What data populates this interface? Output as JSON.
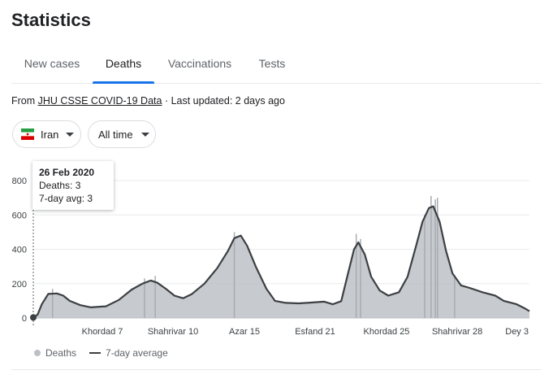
{
  "header": {
    "title": "Statistics"
  },
  "tabs": [
    {
      "label": "New cases",
      "active": false
    },
    {
      "label": "Deaths",
      "active": true
    },
    {
      "label": "Vaccinations",
      "active": false
    },
    {
      "label": "Tests",
      "active": false
    }
  ],
  "source": {
    "prefix": "From ",
    "link": "JHU CSSE COVID-19 Data",
    "updated": " · Last updated: 2 days ago"
  },
  "filters": {
    "country": {
      "label": "Iran",
      "icon": "iran-flag-icon"
    },
    "range": {
      "label": "All time"
    }
  },
  "tooltip": {
    "date": "26 Feb 2020",
    "deaths": "Deaths: 3",
    "avg": "7-day avg: 3"
  },
  "legend": {
    "deaths": "Deaths",
    "average": "7-day average"
  },
  "colors": {
    "accent": "#1a73e8",
    "bars": "#bdc1c6",
    "line": "#3c4043"
  },
  "chart_data": {
    "type": "area",
    "ylim": [
      0,
      800
    ],
    "yticks": [
      0,
      200,
      400,
      600,
      800
    ],
    "xtick_labels": [
      "Khordad 7",
      "Shahrivar 10",
      "Azar 15",
      "Esfand 21",
      "Khordad 25",
      "Shahrivar 28",
      "Dey 3"
    ],
    "series": [
      {
        "name": "7-day average",
        "points": [
          [
            0,
            3
          ],
          [
            0.01,
            20
          ],
          [
            0.02,
            80
          ],
          [
            0.035,
            140
          ],
          [
            0.055,
            143
          ],
          [
            0.07,
            130
          ],
          [
            0.085,
            100
          ],
          [
            0.11,
            75
          ],
          [
            0.135,
            62
          ],
          [
            0.17,
            68
          ],
          [
            0.2,
            105
          ],
          [
            0.23,
            165
          ],
          [
            0.255,
            200
          ],
          [
            0.275,
            218
          ],
          [
            0.29,
            205
          ],
          [
            0.31,
            170
          ],
          [
            0.33,
            130
          ],
          [
            0.35,
            115
          ],
          [
            0.37,
            138
          ],
          [
            0.4,
            200
          ],
          [
            0.43,
            290
          ],
          [
            0.455,
            390
          ],
          [
            0.47,
            465
          ],
          [
            0.485,
            480
          ],
          [
            0.5,
            420
          ],
          [
            0.52,
            300
          ],
          [
            0.545,
            170
          ],
          [
            0.565,
            100
          ],
          [
            0.59,
            88
          ],
          [
            0.62,
            85
          ],
          [
            0.65,
            90
          ],
          [
            0.68,
            95
          ],
          [
            0.7,
            80
          ],
          [
            0.72,
            98
          ],
          [
            0.735,
            250
          ],
          [
            0.75,
            400
          ],
          [
            0.76,
            440
          ],
          [
            0.775,
            370
          ],
          [
            0.79,
            240
          ],
          [
            0.81,
            160
          ],
          [
            0.83,
            130
          ],
          [
            0.855,
            150
          ],
          [
            0.875,
            240
          ],
          [
            0.895,
            420
          ],
          [
            0.91,
            560
          ],
          [
            0.925,
            640
          ],
          [
            0.935,
            650
          ],
          [
            0.95,
            560
          ],
          [
            0.965,
            390
          ],
          [
            0.98,
            260
          ],
          [
            1.0,
            190
          ],
          [
            1.02,
            175
          ],
          [
            1.05,
            150
          ],
          [
            1.08,
            130
          ],
          [
            1.1,
            100
          ],
          [
            1.13,
            80
          ],
          [
            1.15,
            55
          ],
          [
            1.16,
            40
          ]
        ]
      }
    ],
    "spikes": [
      [
        0.045,
        170
      ],
      [
        0.26,
        230
      ],
      [
        0.285,
        245
      ],
      [
        0.47,
        500
      ],
      [
        0.755,
        490
      ],
      [
        0.765,
        460
      ],
      [
        0.93,
        710
      ],
      [
        0.945,
        700
      ],
      [
        0.94,
        690
      ],
      [
        0.915,
        600
      ],
      [
        0.985,
        250
      ]
    ]
  }
}
